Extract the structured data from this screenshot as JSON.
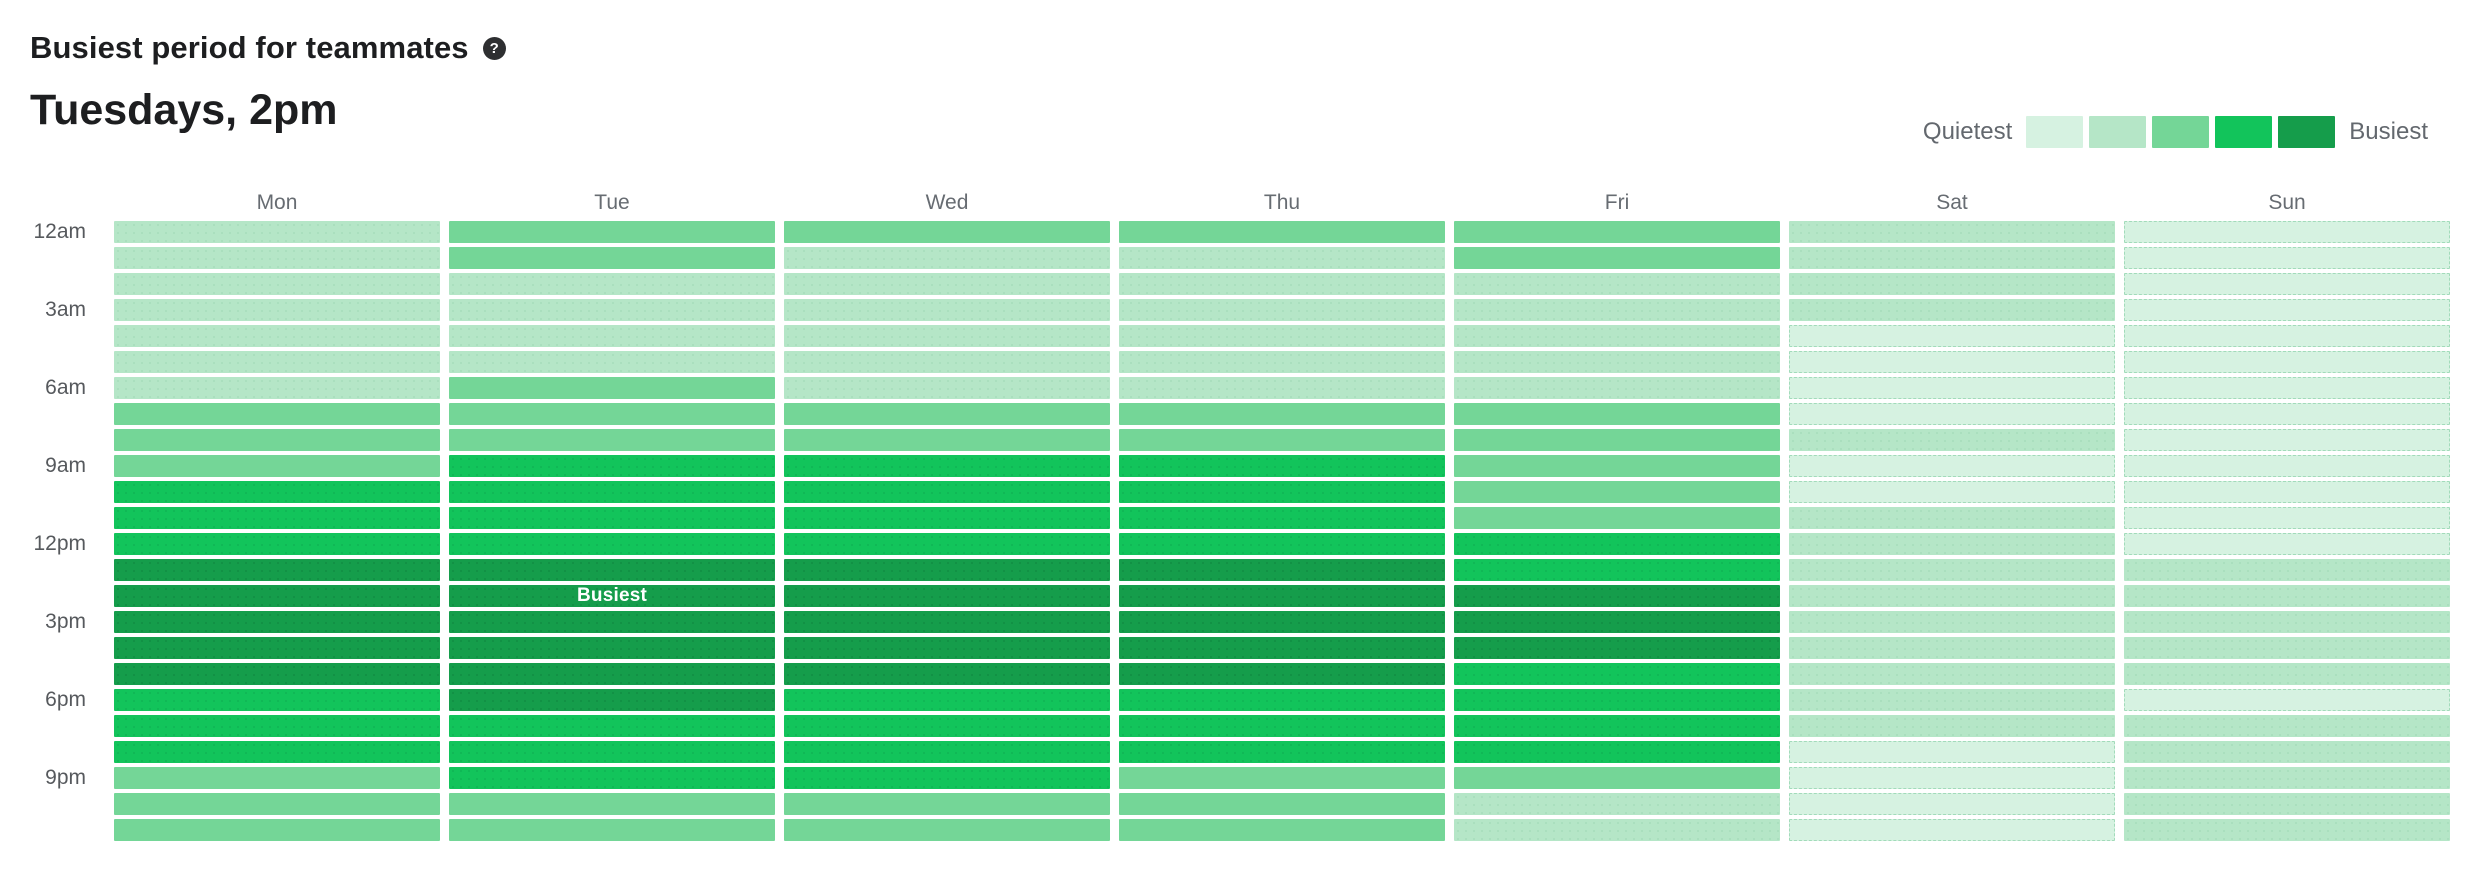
{
  "header": {
    "title": "Busiest period for teammates",
    "help_icon": "question-mark-icon",
    "help_glyph": "?",
    "subtitle": "Tuesdays, 2pm"
  },
  "legend": {
    "min_label": "Quietest",
    "max_label": "Busiest",
    "level_colors": [
      "#d6f2e1",
      "#b5e6c7",
      "#74d697",
      "#12c45b",
      "#159d4b"
    ]
  },
  "chart_data": {
    "type": "heatmap",
    "title": "Busiest period for teammates",
    "subtitle": "Tuesdays, 2pm",
    "columns": [
      "Mon",
      "Tue",
      "Wed",
      "Thu",
      "Fri",
      "Sat",
      "Sun"
    ],
    "hours": [
      "12am",
      "1am",
      "2am",
      "3am",
      "4am",
      "5am",
      "6am",
      "7am",
      "8am",
      "9am",
      "10am",
      "11am",
      "12pm",
      "1pm",
      "2pm",
      "3pm",
      "4pm",
      "5pm",
      "6pm",
      "7pm",
      "8pm",
      "9pm",
      "10pm",
      "11pm"
    ],
    "hour_ticks": [
      "12am",
      "3am",
      "6am",
      "9am",
      "12pm",
      "3pm",
      "6pm",
      "9pm"
    ],
    "scale": {
      "min": 1,
      "max": 5,
      "min_meaning": "quietest",
      "max_meaning": "busiest"
    },
    "series": [
      {
        "name": "Mon",
        "values": [
          2,
          2,
          2,
          2,
          2,
          2,
          2,
          3,
          3,
          3,
          4,
          4,
          4,
          5,
          5,
          5,
          5,
          5,
          4,
          4,
          4,
          3,
          3,
          3
        ]
      },
      {
        "name": "Tue",
        "values": [
          3,
          3,
          2,
          2,
          2,
          2,
          3,
          3,
          3,
          4,
          4,
          4,
          4,
          5,
          5,
          5,
          5,
          5,
          5,
          4,
          4,
          4,
          3,
          3
        ]
      },
      {
        "name": "Wed",
        "values": [
          3,
          2,
          2,
          2,
          2,
          2,
          2,
          3,
          3,
          4,
          4,
          4,
          4,
          5,
          5,
          5,
          5,
          5,
          4,
          4,
          4,
          4,
          3,
          3
        ]
      },
      {
        "name": "Thu",
        "values": [
          3,
          2,
          2,
          2,
          2,
          2,
          2,
          3,
          3,
          4,
          4,
          4,
          4,
          5,
          5,
          5,
          5,
          5,
          4,
          4,
          4,
          3,
          3,
          3
        ]
      },
      {
        "name": "Fri",
        "values": [
          3,
          3,
          2,
          2,
          2,
          2,
          2,
          3,
          3,
          3,
          3,
          3,
          4,
          4,
          5,
          5,
          5,
          4,
          4,
          4,
          4,
          3,
          2,
          2
        ]
      },
      {
        "name": "Sat",
        "values": [
          2,
          2,
          2,
          2,
          1,
          1,
          1,
          1,
          2,
          1,
          1,
          2,
          2,
          2,
          2,
          2,
          2,
          2,
          2,
          2,
          1,
          1,
          1,
          1
        ]
      },
      {
        "name": "Sun",
        "values": [
          1,
          1,
          1,
          1,
          1,
          1,
          1,
          1,
          1,
          1,
          1,
          1,
          1,
          2,
          2,
          2,
          2,
          2,
          1,
          2,
          2,
          2,
          2,
          2
        ]
      }
    ],
    "busiest_annotation": {
      "day": "Tue",
      "hour": "2pm",
      "text": "Busiest"
    },
    "legend_position": "top-right",
    "grid": "off"
  }
}
